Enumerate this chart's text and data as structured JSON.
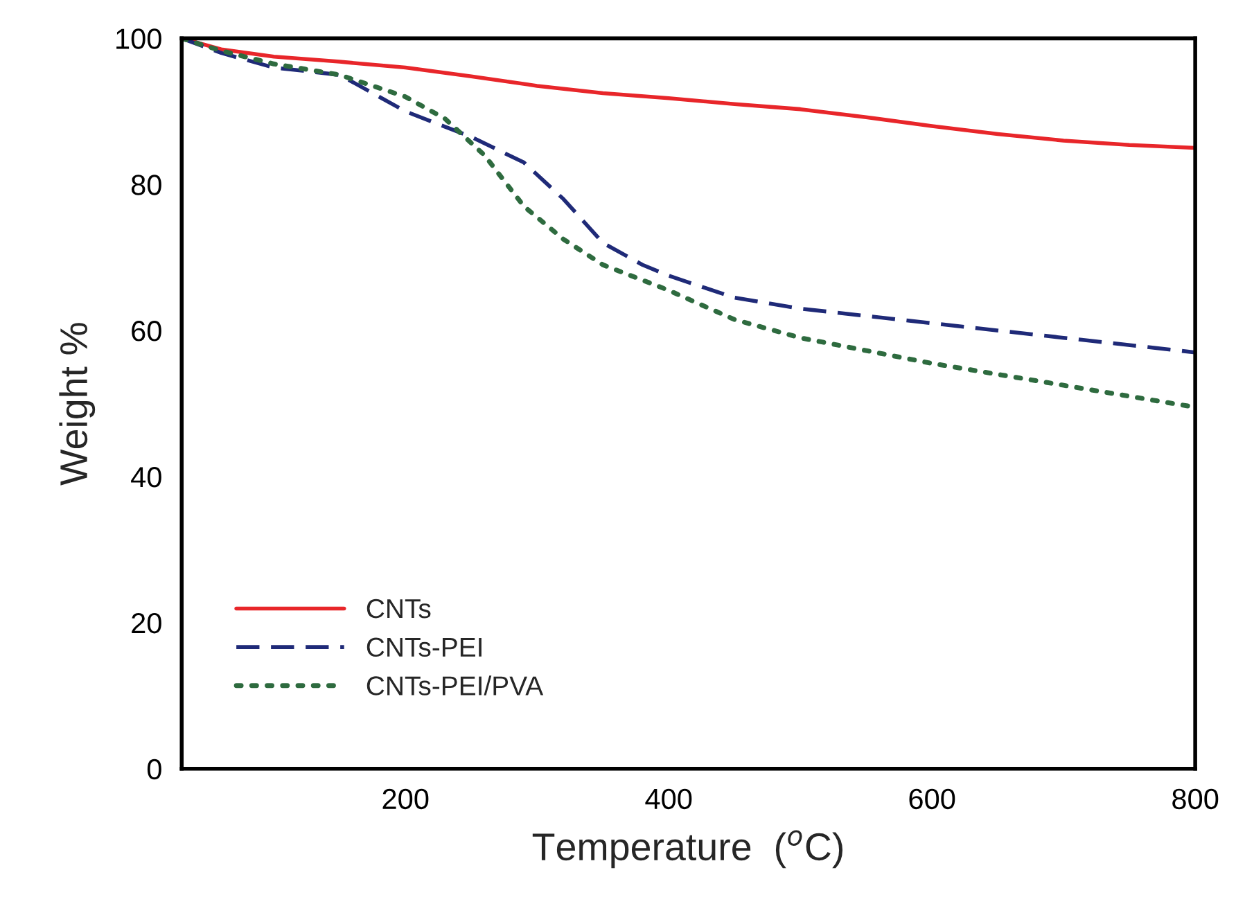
{
  "chart_data": {
    "type": "line",
    "xlabel": "Temperature  ($^{o}$C)",
    "ylabel": "Weight %",
    "xlim": [
      30,
      800
    ],
    "xticks": [
      200,
      400,
      600,
      800
    ],
    "ylim": [
      0,
      100
    ],
    "yticks": [
      0,
      20,
      40,
      60,
      80,
      100
    ],
    "grid": false,
    "legend": "bottom left",
    "series": [
      {
        "name": "CNTs",
        "color": "#e8262a",
        "line_style": "solid",
        "x": [
          30,
          60,
          100,
          150,
          200,
          250,
          300,
          350,
          400,
          450,
          500,
          550,
          600,
          650,
          700,
          750,
          800
        ],
        "values": [
          100,
          98.5,
          97.5,
          96.8,
          96,
          94.8,
          93.5,
          92.5,
          91.8,
          91,
          90.3,
          89.2,
          88,
          86.9,
          86,
          85.4,
          85
        ]
      },
      {
        "name": "CNTs-PEI",
        "color": "#1f2a78",
        "line_style": "dashed",
        "x": [
          30,
          60,
          100,
          150,
          200,
          250,
          290,
          320,
          350,
          380,
          400,
          450,
          500,
          600,
          700,
          800
        ],
        "values": [
          100,
          98,
          96,
          95,
          90,
          86.5,
          83,
          78,
          72,
          69,
          67.5,
          64.5,
          63,
          61,
          59,
          57
        ]
      },
      {
        "name": "CNTs-PEI/PVA",
        "color": "#2e6b3f",
        "line_style": "dotted",
        "x": [
          30,
          60,
          100,
          150,
          200,
          230,
          260,
          290,
          320,
          350,
          400,
          450,
          500,
          600,
          700,
          800
        ],
        "values": [
          100,
          98.3,
          96.5,
          95,
          92,
          89,
          84,
          77,
          72.5,
          69,
          65.5,
          61.5,
          59,
          55.5,
          52.5,
          49.5
        ]
      }
    ]
  }
}
